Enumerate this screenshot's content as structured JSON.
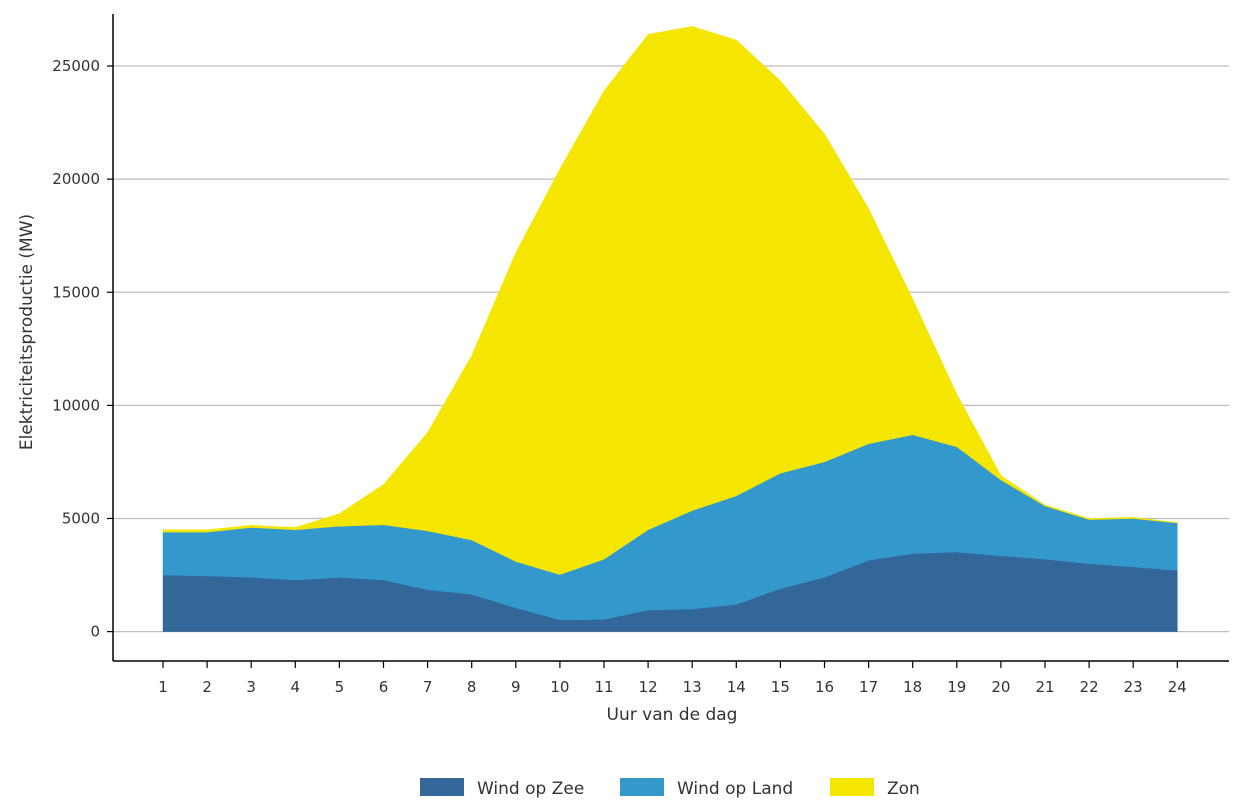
{
  "chart_data": {
    "type": "area",
    "stacked": true,
    "xlabel": "Uur van de dag",
    "ylabel": "Elektriciteitsproductie (MW)",
    "x": [
      1,
      2,
      3,
      4,
      5,
      6,
      7,
      8,
      9,
      10,
      11,
      12,
      13,
      14,
      15,
      16,
      17,
      18,
      19,
      20,
      21,
      22,
      23,
      24
    ],
    "ylim": [
      -1300,
      27300
    ],
    "yticks": [
      0,
      5000,
      10000,
      15000,
      20000,
      25000
    ],
    "grid": "horizontal",
    "legend_position": "bottom",
    "series": [
      {
        "name": "Wind op Zee",
        "color": "#336699",
        "values": [
          2500,
          2460,
          2400,
          2280,
          2400,
          2280,
          1850,
          1650,
          1050,
          520,
          540,
          950,
          1000,
          1200,
          1900,
          2400,
          3150,
          3450,
          3520,
          3350,
          3200,
          3000,
          2860,
          2700
        ]
      },
      {
        "name": "Wind op Land",
        "color": "#3399cc",
        "values": [
          1900,
          1940,
          2200,
          2220,
          2260,
          2440,
          2600,
          2400,
          2050,
          2000,
          2660,
          3550,
          4350,
          4800,
          5100,
          5100,
          5150,
          5250,
          4650,
          3350,
          2350,
          1950,
          2140,
          2100
        ]
      },
      {
        "name": "Zon",
        "color": "#f5e600",
        "values": [
          100,
          100,
          100,
          100,
          550,
          1780,
          4350,
          8150,
          13650,
          17930,
          20700,
          21900,
          21400,
          20150,
          17350,
          14500,
          10400,
          6000,
          2330,
          200,
          50,
          50,
          50,
          20
        ]
      }
    ]
  }
}
